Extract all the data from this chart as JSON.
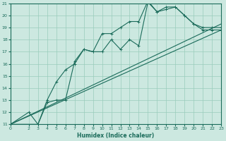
{
  "title": "",
  "xlabel": "Humidex (Indice chaleur)",
  "bg_color": "#cce8e0",
  "grid_color": "#99ccbb",
  "line_color": "#1a6b5a",
  "xlim": [
    0,
    23
  ],
  "ylim": [
    11,
    21
  ],
  "xticks": [
    0,
    2,
    3,
    4,
    5,
    6,
    7,
    8,
    9,
    10,
    11,
    12,
    13,
    14,
    15,
    16,
    17,
    18,
    19,
    20,
    21,
    22,
    23
  ],
  "yticks": [
    11,
    12,
    13,
    14,
    15,
    16,
    17,
    18,
    19,
    20,
    21
  ],
  "line1_x": [
    0,
    2,
    3,
    4,
    5,
    6,
    7,
    8,
    9,
    10,
    11,
    12,
    13,
    14,
    15,
    16,
    17,
    18,
    19,
    20,
    21,
    22,
    23
  ],
  "line1_y": [
    11,
    12,
    11,
    13,
    14.5,
    15.5,
    16.0,
    17.2,
    17.0,
    17.0,
    18.0,
    17.2,
    18.0,
    17.5,
    21.1,
    20.3,
    20.7,
    20.7,
    20.0,
    19.3,
    19.0,
    19.0,
    19.0
  ],
  "line2_x": [
    0,
    3,
    4,
    5,
    6,
    7,
    8,
    9,
    10,
    11,
    12,
    13,
    14,
    15,
    16,
    17,
    18,
    19,
    20,
    21,
    22,
    23
  ],
  "line2_y": [
    11,
    11,
    12.8,
    13.0,
    13.0,
    16.2,
    17.2,
    17.0,
    18.5,
    18.5,
    19.0,
    19.5,
    19.5,
    21.2,
    20.3,
    20.5,
    20.7,
    20.0,
    19.3,
    18.8,
    18.8,
    18.8
  ],
  "line3_x": [
    0,
    23
  ],
  "line3_y": [
    11,
    18.8
  ],
  "line4_x": [
    0,
    23
  ],
  "line4_y": [
    11,
    19.3
  ]
}
